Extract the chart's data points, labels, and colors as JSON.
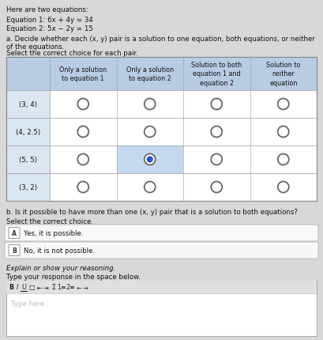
{
  "title_text": "Here are two equations:",
  "eq1": "Equation 1: 6x + 4y = 34",
  "eq2": "Equation 2: 5x − 2y = 15",
  "part_a_text": "a. Decide whether each (x, y) pair is a solution to one equation, both equations, or neither of the equations.",
  "select_text": "Select the correct choice for each pair.",
  "col_headers": [
    "Only a solution\nto equation 1",
    "Only a solution\nto equation 2",
    "Solution to both\nequation 1 and\nequation 2",
    "Solution to\nneither\nequation"
  ],
  "row_labels": [
    "(3, 4)",
    "(4, 2.5)",
    "(5, 5)",
    "(3, 2)"
  ],
  "selected": [
    [
      null,
      null,
      null,
      null
    ],
    [
      null,
      null,
      null,
      null
    ],
    [
      null,
      1,
      null,
      null
    ],
    [
      null,
      null,
      null,
      null
    ]
  ],
  "part_b_text": "b. Is it possible to have more than one (x, y) pair that is a solution to both equations?",
  "select_choice_text": "Select the correct choice.",
  "choice_A": "Yes, it is possible.",
  "choice_B": "No, it is not possible.",
  "explain_text": "Explain or show your reasoning.",
  "type_text": "Type your response in the space below.",
  "placeholder": "Type here",
  "bg_color": "#d8d8d8",
  "table_header_bg": "#b8cce4",
  "table_label_bg": "#dce6f1",
  "table_body_bg": "#f5f5f5",
  "selected_fill": "#2255cc",
  "selected_cell_bg": "#c5d8f0",
  "circle_edge": "#666666",
  "text_color": "#111111",
  "choice_border": "#aaaaaa",
  "choice_bg": "#f8f8f8",
  "editor_bg": "#ffffff",
  "toolbar_bg": "#e0e0e0"
}
